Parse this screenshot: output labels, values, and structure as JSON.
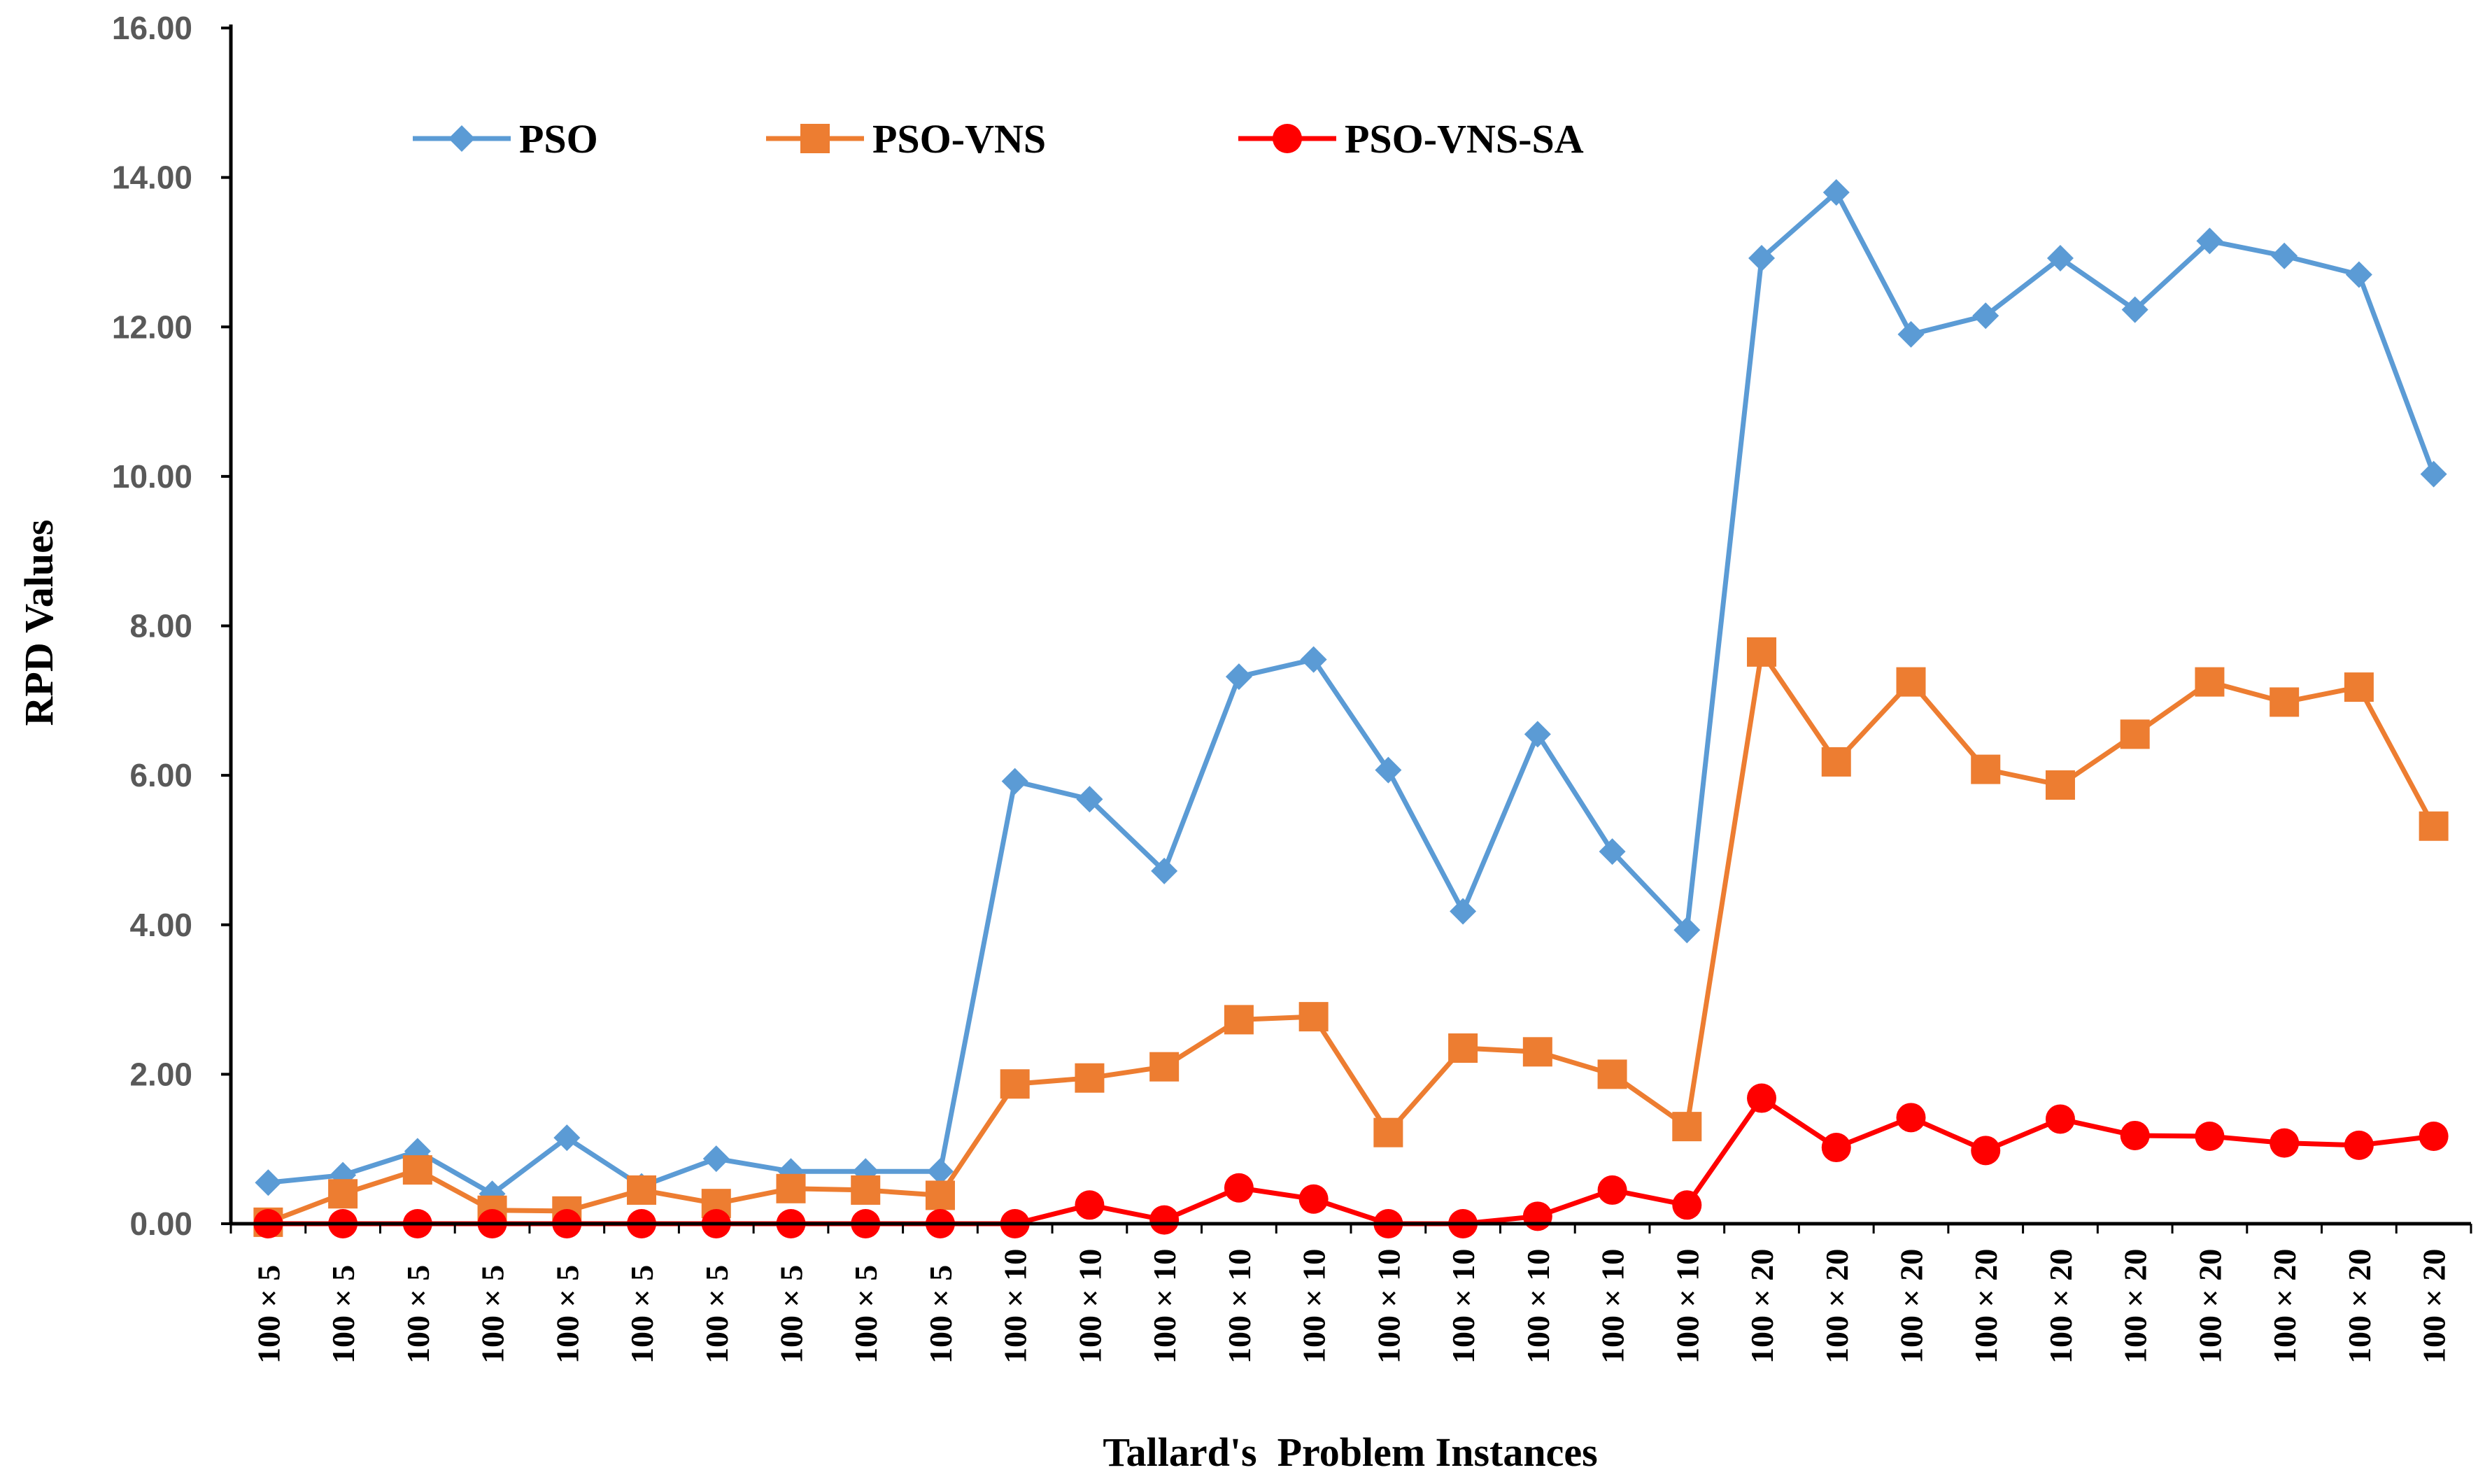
{
  "chart_data": {
    "type": "line",
    "title": "",
    "xlabel": "Tallard's  Problem Instances",
    "ylabel": "RPD Values",
    "ylim": [
      0,
      16
    ],
    "yticks": [
      "0.00",
      "2.00",
      "4.00",
      "6.00",
      "8.00",
      "10.00",
      "12.00",
      "14.00",
      "16.00"
    ],
    "ytick_values": [
      0,
      2,
      4,
      6,
      8,
      10,
      12,
      14,
      16
    ],
    "grid": false,
    "legend_position": "top-left",
    "categories": [
      "100 × 5",
      "100 × 5",
      "100 × 5",
      "100 × 5",
      "100 × 5",
      "100 × 5",
      "100 × 5",
      "100 × 5",
      "100 × 5",
      "100 × 5",
      "100 × 10",
      "100 × 10",
      "100 × 10",
      "100 × 10",
      "100 × 10",
      "100 × 10",
      "100 × 10",
      "100 × 10",
      "100 × 10",
      "100 × 10",
      "100 × 20",
      "100 × 20",
      "100 × 20",
      "100 × 20",
      "100 × 20",
      "100 × 20",
      "100 × 20",
      "100 × 20",
      "100 × 20",
      "100 × 20"
    ],
    "series": [
      {
        "name": "PSO",
        "color": "#5B9BD5",
        "marker": "diamond",
        "values": [
          0.55,
          0.65,
          0.97,
          0.4,
          1.15,
          0.5,
          0.87,
          0.7,
          0.7,
          0.7,
          5.92,
          5.68,
          4.72,
          7.32,
          7.55,
          6.07,
          4.18,
          6.55,
          4.98,
          3.93,
          12.92,
          13.8,
          11.9,
          12.15,
          12.92,
          12.23,
          13.15,
          12.95,
          12.7,
          10.03
        ]
      },
      {
        "name": "PSO-VNS",
        "color": "#ED7D31",
        "marker": "square",
        "values": [
          0.02,
          0.4,
          0.72,
          0.18,
          0.17,
          0.45,
          0.27,
          0.47,
          0.45,
          0.38,
          1.87,
          1.95,
          2.1,
          2.73,
          2.77,
          1.22,
          2.35,
          2.3,
          2.0,
          1.3,
          7.65,
          6.18,
          7.25,
          6.08,
          5.87,
          6.55,
          7.25,
          6.98,
          7.18,
          5.32
        ]
      },
      {
        "name": "PSO-VNS-SA",
        "color": "#FF0000",
        "marker": "circle",
        "values": [
          0,
          0,
          0,
          0,
          0,
          0,
          0,
          0,
          0,
          0,
          0,
          0.25,
          0.05,
          0.48,
          0.33,
          0,
          0,
          0.1,
          0.45,
          0.25,
          1.68,
          1.02,
          1.42,
          0.98,
          1.4,
          1.18,
          1.17,
          1.08,
          1.05,
          1.17
        ]
      }
    ]
  }
}
